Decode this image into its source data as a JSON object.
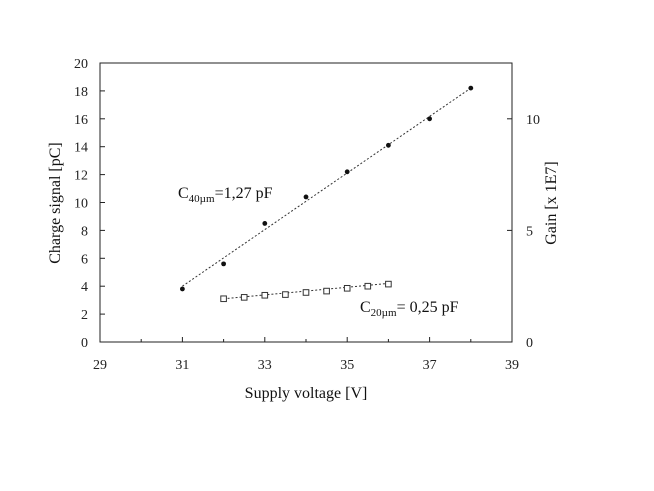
{
  "chart_data": {
    "type": "scatter",
    "xlabel": "Supply voltage [V]",
    "ylabel": "Charge signal [pC]",
    "y2label": "Gain [x 1E7]",
    "xlim": [
      29,
      39
    ],
    "ylim": [
      0,
      20
    ],
    "y2lim": [
      0,
      12.5
    ],
    "xticks": [
      "29",
      "31",
      "33",
      "35",
      "37",
      "39"
    ],
    "yticks": [
      "0",
      "2",
      "4",
      "6",
      "8",
      "10",
      "12",
      "14",
      "16",
      "18",
      "20"
    ],
    "y2ticks": [
      "0",
      "5",
      "10"
    ],
    "y2tick_values": [
      0,
      5,
      10
    ],
    "grid": false,
    "legend": "none",
    "series": [
      {
        "marker": "filled-circle",
        "trendline": "dotted",
        "x": [
          31,
          32,
          33,
          34,
          35,
          36,
          37,
          38
        ],
        "y": [
          3.8,
          5.6,
          8.5,
          10.4,
          12.2,
          14.1,
          16.0,
          18.2
        ],
        "fit": {
          "x": [
            31,
            38
          ],
          "y": [
            4.0,
            18.2
          ]
        }
      },
      {
        "marker": "open-square",
        "trendline": "dotted",
        "x": [
          32,
          32.5,
          33,
          33.5,
          34,
          34.5,
          35,
          35.5,
          36
        ],
        "y": [
          3.1,
          3.2,
          3.35,
          3.4,
          3.55,
          3.65,
          3.85,
          4.0,
          4.15
        ],
        "fit": {
          "x": [
            32,
            36
          ],
          "y": [
            3.1,
            4.2
          ]
        }
      }
    ],
    "annotations": [
      {
        "text": "C",
        "sub": "40µm",
        "rest": "=1,27 pF"
      },
      {
        "text": "C",
        "sub": "20µm",
        "rest": "= 0,25 pF"
      }
    ]
  }
}
